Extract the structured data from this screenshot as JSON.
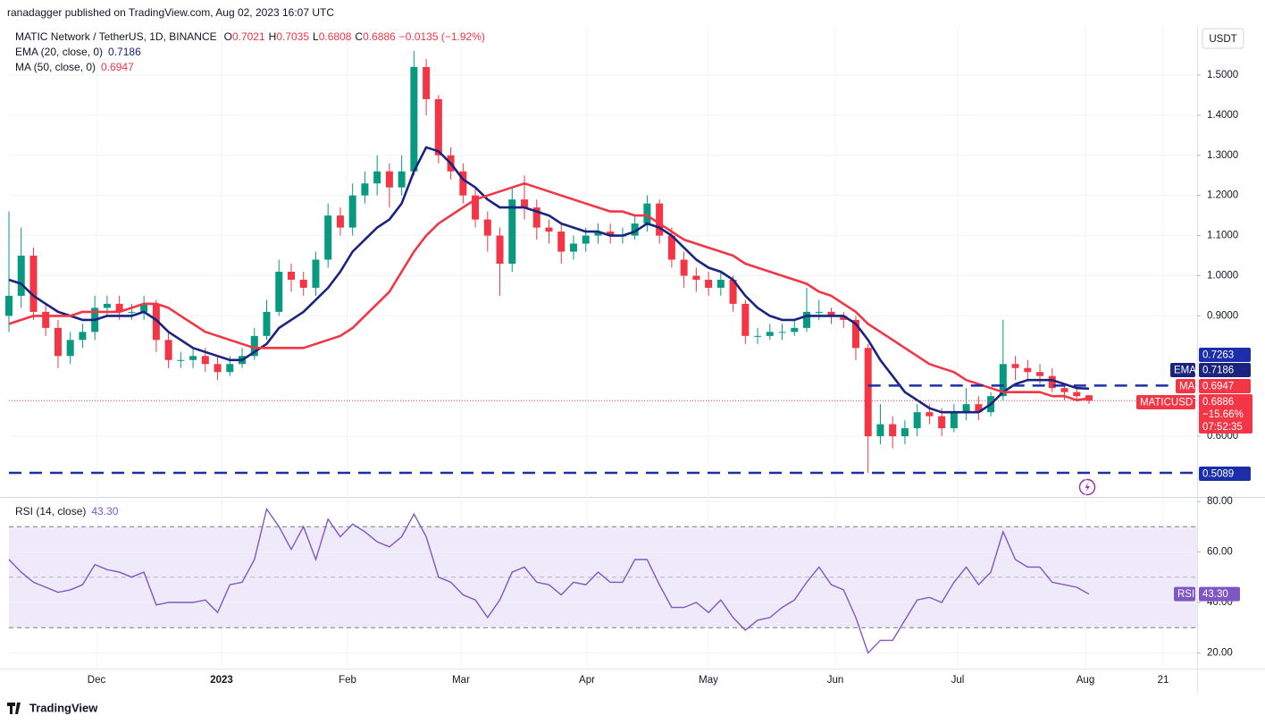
{
  "header": {
    "published": "ranadagger published on TradingView.com, Aug 02, 2023 16:07 UTC",
    "symbol": "MATIC Network / TetherUS, 1D, BINANCE",
    "ohlc_letters": [
      "O",
      "H",
      "L",
      "C"
    ],
    "change": "−0.0135 (−1.92%)",
    "currency": "USDT",
    "brand": "TradingView"
  },
  "time_axis": {
    "labels": [
      "Dec",
      "2023",
      "Feb",
      "Mar",
      "Apr",
      "May",
      "Jun",
      "Jul",
      "Aug",
      "21"
    ]
  },
  "chart_data": [
    {
      "type": "candlestick",
      "up_color": "#089981",
      "down_color": "#f23645",
      "open": [
        0.9,
        0.95,
        1.05,
        0.91,
        0.87,
        0.8,
        0.84,
        0.86,
        0.92,
        0.93,
        0.91,
        0.91,
        0.93,
        0.84,
        0.79,
        0.79,
        0.8,
        0.78,
        0.76,
        0.78,
        0.8,
        0.85,
        0.91,
        1.01,
        0.99,
        0.97,
        1.04,
        1.15,
        1.12,
        1.2,
        1.23,
        1.26,
        1.22,
        1.26,
        1.52,
        1.44,
        1.3,
        1.26,
        1.2,
        1.14,
        1.1,
        1.03,
        1.19,
        1.17,
        1.12,
        1.11,
        1.06,
        1.08,
        1.1,
        1.11,
        1.1,
        1.1,
        1.13,
        1.18,
        1.1,
        1.04,
        1.0,
        0.99,
        0.97,
        0.99,
        0.93,
        0.85,
        0.85,
        0.86,
        0.86,
        0.87,
        0.91,
        0.91,
        0.9,
        0.89,
        0.82,
        0.6,
        0.63,
        0.6,
        0.62,
        0.66,
        0.65,
        0.62,
        0.66,
        0.68,
        0.66,
        0.7,
        0.78,
        0.77,
        0.76,
        0.75,
        0.72,
        0.71,
        0.7021
      ],
      "high": [
        1.16,
        1.12,
        1.07,
        0.93,
        0.89,
        0.86,
        0.88,
        0.95,
        0.95,
        0.95,
        0.93,
        0.95,
        0.94,
        0.86,
        0.81,
        0.82,
        0.82,
        0.8,
        0.8,
        0.82,
        0.87,
        0.94,
        1.04,
        1.03,
        1.01,
        1.06,
        1.18,
        1.17,
        1.23,
        1.26,
        1.3,
        1.28,
        1.3,
        1.56,
        1.54,
        1.45,
        1.32,
        1.28,
        1.22,
        1.16,
        1.12,
        1.22,
        1.25,
        1.19,
        1.14,
        1.13,
        1.1,
        1.12,
        1.13,
        1.13,
        1.12,
        1.15,
        1.2,
        1.19,
        1.12,
        1.06,
        1.02,
        1.01,
        1.01,
        1.0,
        0.94,
        0.87,
        0.88,
        0.88,
        0.89,
        0.97,
        0.94,
        0.92,
        0.91,
        0.9,
        0.83,
        0.68,
        0.65,
        0.64,
        0.68,
        0.68,
        0.67,
        0.68,
        0.72,
        0.7,
        0.71,
        0.89,
        0.8,
        0.79,
        0.78,
        0.77,
        0.73,
        0.72,
        0.7035
      ],
      "low": [
        0.86,
        0.92,
        0.89,
        0.85,
        0.77,
        0.78,
        0.82,
        0.84,
        0.9,
        0.89,
        0.89,
        0.89,
        0.81,
        0.77,
        0.77,
        0.77,
        0.76,
        0.74,
        0.75,
        0.77,
        0.79,
        0.84,
        0.9,
        0.96,
        0.95,
        0.95,
        1.02,
        1.1,
        1.1,
        1.18,
        1.2,
        1.17,
        1.2,
        1.25,
        1.4,
        1.28,
        1.24,
        1.18,
        1.12,
        1.06,
        0.95,
        1.01,
        1.14,
        1.09,
        1.08,
        1.03,
        1.04,
        1.06,
        1.08,
        1.08,
        1.08,
        1.09,
        1.11,
        1.08,
        1.02,
        0.97,
        0.96,
        0.95,
        0.95,
        0.91,
        0.83,
        0.83,
        0.84,
        0.84,
        0.85,
        0.86,
        0.89,
        0.88,
        0.87,
        0.79,
        0.5089,
        0.58,
        0.57,
        0.58,
        0.6,
        0.63,
        0.6,
        0.61,
        0.64,
        0.64,
        0.65,
        0.69,
        0.74,
        0.74,
        0.73,
        0.71,
        0.69,
        0.69,
        0.6808
      ],
      "close": [
        0.95,
        1.05,
        0.91,
        0.87,
        0.8,
        0.84,
        0.86,
        0.92,
        0.93,
        0.91,
        0.91,
        0.93,
        0.84,
        0.79,
        0.79,
        0.8,
        0.78,
        0.76,
        0.78,
        0.8,
        0.85,
        0.91,
        1.01,
        0.99,
        0.97,
        1.04,
        1.15,
        1.12,
        1.2,
        1.23,
        1.26,
        1.22,
        1.26,
        1.52,
        1.44,
        1.3,
        1.26,
        1.2,
        1.14,
        1.1,
        1.03,
        1.19,
        1.17,
        1.12,
        1.11,
        1.06,
        1.08,
        1.1,
        1.11,
        1.1,
        1.1,
        1.13,
        1.18,
        1.1,
        1.04,
        1.0,
        0.99,
        0.97,
        0.99,
        0.93,
        0.85,
        0.85,
        0.86,
        0.86,
        0.87,
        0.91,
        0.91,
        0.9,
        0.89,
        0.82,
        0.6,
        0.63,
        0.6,
        0.62,
        0.66,
        0.65,
        0.62,
        0.66,
        0.68,
        0.66,
        0.7,
        0.78,
        0.77,
        0.76,
        0.75,
        0.72,
        0.71,
        0.7,
        0.6886
      ],
      "series": [
        {
          "name": "EMA",
          "legend": "EMA (20, close, 0)",
          "color": "#1a237e",
          "values": [
            0.99,
            0.98,
            0.95,
            0.93,
            0.91,
            0.9,
            0.89,
            0.89,
            0.9,
            0.9,
            0.9,
            0.91,
            0.89,
            0.86,
            0.84,
            0.82,
            0.81,
            0.8,
            0.79,
            0.79,
            0.81,
            0.83,
            0.87,
            0.89,
            0.91,
            0.94,
            0.97,
            1.01,
            1.06,
            1.09,
            1.12,
            1.14,
            1.18,
            1.26,
            1.32,
            1.31,
            1.28,
            1.24,
            1.22,
            1.19,
            1.17,
            1.17,
            1.17,
            1.16,
            1.15,
            1.13,
            1.12,
            1.11,
            1.11,
            1.1,
            1.1,
            1.11,
            1.13,
            1.12,
            1.1,
            1.07,
            1.04,
            1.02,
            1.01,
            0.99,
            0.95,
            0.92,
            0.9,
            0.89,
            0.89,
            0.9,
            0.9,
            0.9,
            0.9,
            0.88,
            0.84,
            0.79,
            0.75,
            0.71,
            0.69,
            0.67,
            0.66,
            0.66,
            0.66,
            0.66,
            0.68,
            0.71,
            0.73,
            0.74,
            0.74,
            0.74,
            0.73,
            0.72,
            0.7186
          ]
        },
        {
          "name": "MA",
          "legend": "MA (50, close, 0)",
          "color": "#f23645",
          "values": [
            0.88,
            0.89,
            0.9,
            0.9,
            0.9,
            0.9,
            0.91,
            0.91,
            0.91,
            0.91,
            0.92,
            0.93,
            0.93,
            0.92,
            0.9,
            0.88,
            0.86,
            0.85,
            0.84,
            0.83,
            0.82,
            0.82,
            0.82,
            0.82,
            0.82,
            0.83,
            0.84,
            0.85,
            0.87,
            0.9,
            0.93,
            0.96,
            1.01,
            1.06,
            1.1,
            1.13,
            1.15,
            1.17,
            1.19,
            1.2,
            1.21,
            1.22,
            1.23,
            1.22,
            1.21,
            1.2,
            1.19,
            1.18,
            1.17,
            1.16,
            1.16,
            1.15,
            1.15,
            1.13,
            1.11,
            1.09,
            1.08,
            1.07,
            1.06,
            1.05,
            1.03,
            1.02,
            1.01,
            1.0,
            0.99,
            0.98,
            0.96,
            0.95,
            0.93,
            0.91,
            0.88,
            0.86,
            0.84,
            0.82,
            0.8,
            0.78,
            0.77,
            0.76,
            0.74,
            0.73,
            0.72,
            0.71,
            0.71,
            0.71,
            0.71,
            0.7,
            0.7,
            0.69,
            0.6947
          ]
        }
      ],
      "levels": [
        0.7263,
        0.5089
      ],
      "level_color": "#1c2fa8",
      "price_label": "MATICUSDT",
      "change_pct": "−15.66%",
      "countdown": "07:52:35",
      "ylim": [
        0.451,
        1.687
      ],
      "grid": true,
      "yticks": [
        {
          "value": 1.5,
          "label": "1.5000"
        },
        {
          "value": 1.4,
          "label": "1.4000"
        },
        {
          "value": 1.3,
          "label": "1.3000"
        },
        {
          "value": 1.2,
          "label": "1.2000"
        },
        {
          "value": 1.1,
          "label": "1.1000"
        },
        {
          "value": 1.0,
          "label": "1.0000"
        },
        {
          "value": 0.9,
          "label": "0.9000"
        },
        {
          "value": 0.6,
          "label": "0.6000"
        }
      ]
    },
    {
      "type": "line",
      "title": "RSI (14, close)",
      "name": "RSI",
      "last_label": "43.30",
      "color": "#7e57c2",
      "values": [
        57,
        52,
        48,
        46,
        44,
        45,
        47,
        55,
        53,
        52,
        50,
        52,
        39,
        40,
        40,
        40,
        41,
        36,
        47,
        48,
        57,
        77,
        70,
        61,
        70,
        57,
        73,
        66,
        71,
        68,
        64,
        62,
        66,
        75,
        66,
        50,
        48,
        43,
        41,
        34,
        41,
        52,
        54,
        48,
        47,
        43,
        48,
        47,
        52,
        48,
        48,
        57,
        57,
        47,
        38,
        38,
        40,
        36,
        41,
        34,
        29,
        33,
        34,
        38,
        41,
        48,
        54,
        47,
        45,
        34,
        20,
        25,
        25,
        33,
        41,
        42,
        40,
        48,
        54,
        47,
        52,
        68,
        57,
        54,
        54,
        48,
        47,
        46,
        43.3
      ],
      "band": [
        30,
        70
      ],
      "midline": 50,
      "band_color": "#efeafa",
      "ylim": [
        13.8,
        81.06
      ],
      "yticks": [
        {
          "value": 80,
          "label": "80.00"
        },
        {
          "value": 60,
          "label": "60.00"
        },
        {
          "value": 40,
          "label": "40.00"
        },
        {
          "value": 20,
          "label": "20.00"
        }
      ]
    }
  ]
}
